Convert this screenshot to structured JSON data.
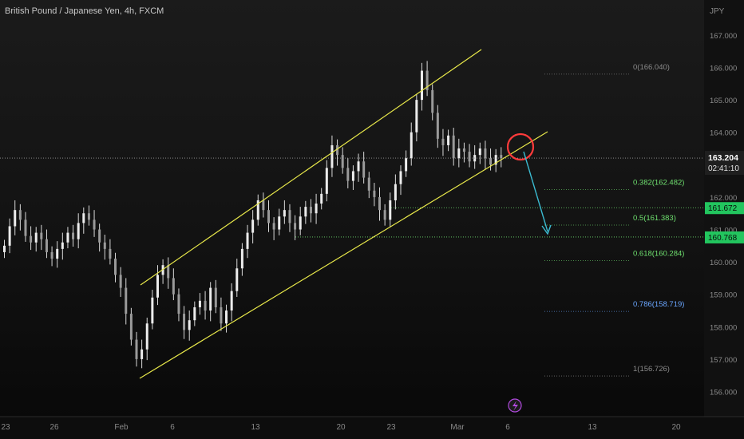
{
  "header": {
    "title": "British Pound / Japanese Yen, 4h, FXCM"
  },
  "colors": {
    "background": "#141414",
    "candle": "#d9d9d9",
    "channel": "#e8e84a",
    "arrow": "#3bbad0",
    "marker_circle": "#ff3b3b",
    "fib_green": "#6fe06f",
    "fib_blue": "#6aa6ff",
    "fib_gray": "#8a8a8a",
    "price_tag_bg": "#22c55e",
    "current_tag_bg": "#1f1f1f",
    "event_icon": "#b24ae0"
  },
  "icons": {
    "event": "lightning-icon"
  },
  "chart_data": {
    "type": "candlestick",
    "title": "British Pound / Japanese Yen, 4h, FXCM",
    "currency_label": "JPY",
    "ylim": [
      155.2,
      167.6
    ],
    "y_ticks": [
      "156.000",
      "157.000",
      "158.000",
      "159.000",
      "160.000",
      "161.000",
      "162.000",
      "163.000",
      "164.000",
      "165.000",
      "166.000",
      "167.000"
    ],
    "x_tick_labels": [
      "23",
      "26",
      "Feb",
      "6",
      "13",
      "20",
      "23",
      "Mar",
      "6",
      "13",
      "20"
    ],
    "current_price": "163.204",
    "countdown": "02:41:10",
    "price_tags": [
      "161.672",
      "160.768"
    ],
    "fibonacci": [
      {
        "ratio": "0",
        "label": "0(166.040)",
        "price": 166.04,
        "style": "gray"
      },
      {
        "ratio": "0.382",
        "label": "0.382(162.482)",
        "price": 162.482,
        "style": "green"
      },
      {
        "ratio": "0.5",
        "label": "0.5(161.383)",
        "price": 161.383,
        "style": "green"
      },
      {
        "ratio": "0.618",
        "label": "0.618(160.284)",
        "price": 160.284,
        "style": "green"
      },
      {
        "ratio": "0.786",
        "label": "0.786(158.719)",
        "price": 158.719,
        "style": "blue"
      },
      {
        "ratio": "1",
        "label": "1(156.726)",
        "price": 156.726,
        "style": "gray"
      }
    ],
    "candles_closes": [
      160.5,
      161.1,
      161.6,
      161.3,
      160.8,
      160.6,
      160.9,
      160.7,
      160.3,
      160.1,
      160.4,
      160.6,
      160.9,
      160.7,
      161.2,
      161.5,
      161.3,
      161.0,
      160.6,
      160.4,
      160.1,
      159.6,
      159.2,
      158.4,
      157.6,
      157.0,
      157.3,
      158.1,
      158.9,
      159.6,
      159.9,
      159.5,
      159.0,
      158.4,
      157.9,
      158.2,
      158.6,
      158.8,
      158.5,
      159.2,
      158.6,
      158.1,
      158.5,
      159.1,
      159.8,
      160.4,
      160.9,
      161.3,
      161.9,
      161.6,
      161.2,
      161.0,
      161.4,
      161.6,
      161.2,
      161.0,
      161.4,
      161.7,
      161.5,
      161.8,
      162.1,
      162.9,
      163.6,
      163.3,
      162.9,
      162.5,
      162.8,
      163.1,
      162.6,
      162.2,
      162.0,
      161.6,
      161.3,
      161.9,
      162.4,
      162.8,
      163.2,
      164.0,
      165.0,
      165.9,
      165.3,
      164.6,
      163.8,
      163.6,
      163.9,
      163.2,
      163.5,
      163.4,
      163.1,
      163.3,
      163.5,
      163.2,
      163.0,
      163.3,
      163.2
    ],
    "channel": {
      "upper": {
        "from": "Feb 3",
        "to": "Mar 1",
        "price_from": 159.3,
        "price_to": 166.3
      },
      "lower": {
        "from": "Feb 1",
        "to": "Mar 8",
        "price_from": 156.2,
        "price_to": 163.8
      }
    },
    "projection_arrow": {
      "from_price": 163.2,
      "to_price": 160.7
    },
    "grid": false,
    "legend": "none"
  }
}
